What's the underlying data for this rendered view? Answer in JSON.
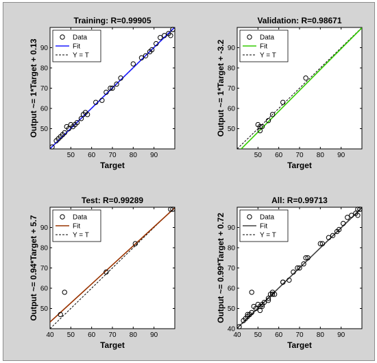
{
  "figure": {
    "background": "#d4d4d4",
    "plot_background": "#ffffff",
    "data_color": "#000000",
    "y_equals_t_color": "#000000"
  },
  "chart_data": [
    {
      "type": "scatter",
      "title": "Training: R=0.99905",
      "xlabel": "Target",
      "ylabel": "Output ~= 1*Target + 0.13",
      "xlim": [
        40,
        100
      ],
      "ylim": [
        40,
        100
      ],
      "xticks": [
        50,
        60,
        70,
        80,
        90
      ],
      "yticks": [
        50,
        60,
        70,
        80,
        90
      ],
      "grid": false,
      "legend": [
        "Data",
        "Fit",
        "Y = T"
      ],
      "legend_position": "top-left",
      "fit_color": "#1a1aff",
      "fit": {
        "slope": 1.0,
        "intercept": 0.13
      },
      "points": [
        [
          41,
          41
        ],
        [
          43,
          44
        ],
        [
          44,
          45
        ],
        [
          45,
          46
        ],
        [
          46,
          47
        ],
        [
          47,
          48
        ],
        [
          48,
          51
        ],
        [
          49,
          50
        ],
        [
          50,
          52
        ],
        [
          51,
          51
        ],
        [
          52,
          52
        ],
        [
          53,
          53
        ],
        [
          55,
          55
        ],
        [
          56,
          57
        ],
        [
          57,
          58
        ],
        [
          58,
          57
        ],
        [
          62,
          63
        ],
        [
          65,
          64
        ],
        [
          67,
          68
        ],
        [
          69,
          70
        ],
        [
          70,
          70
        ],
        [
          72,
          72
        ],
        [
          74,
          75
        ],
        [
          80,
          82
        ],
        [
          84,
          85
        ],
        [
          86,
          86
        ],
        [
          88,
          88
        ],
        [
          89,
          89
        ],
        [
          91,
          92
        ],
        [
          93,
          95
        ],
        [
          95,
          96
        ],
        [
          97,
          97
        ],
        [
          98,
          96
        ],
        [
          99,
          99
        ],
        [
          99,
          99
        ]
      ]
    },
    {
      "type": "scatter",
      "title": "Validation: R=0.98671",
      "xlabel": "Target",
      "ylabel": "Output ~= 1*Target + -3.2",
      "xlim": [
        40,
        100
      ],
      "ylim": [
        40,
        100
      ],
      "xticks": [
        50,
        60,
        70,
        80,
        90
      ],
      "yticks": [
        50,
        60,
        70,
        80,
        90
      ],
      "grid": false,
      "legend": [
        "Data",
        "Fit",
        "Y = T"
      ],
      "legend_position": "top-left",
      "fit_color": "#33cc00",
      "fit": {
        "slope": 1.03,
        "intercept": -3.2
      },
      "points": [
        [
          50,
          52
        ],
        [
          51,
          49
        ],
        [
          51,
          51
        ],
        [
          52,
          51
        ],
        [
          55,
          54
        ],
        [
          57,
          57
        ],
        [
          62,
          63
        ],
        [
          73,
          75
        ]
      ]
    },
    {
      "type": "scatter",
      "title": "Test: R=0.99289",
      "xlabel": "Target",
      "ylabel": "Output ~= 0.94*Target + 5.7",
      "xlim": [
        40,
        100
      ],
      "ylim": [
        40,
        100
      ],
      "xticks": [
        40,
        50,
        60,
        70,
        80,
        90
      ],
      "yticks": [
        50,
        60,
        70,
        80,
        90
      ],
      "grid": false,
      "legend": [
        "Data",
        "Fit",
        "Y = T"
      ],
      "legend_position": "top-left",
      "fit_color": "#993300",
      "fit": {
        "slope": 0.94,
        "intercept": 5.7
      },
      "points": [
        [
          45,
          47
        ],
        [
          47,
          58
        ],
        [
          67,
          68
        ],
        [
          81,
          82
        ],
        [
          98,
          99
        ],
        [
          99,
          99
        ]
      ]
    },
    {
      "type": "scatter",
      "title": "All: R=0.99713",
      "xlabel": "Target",
      "ylabel": "Output ~= 0.99*Target + 0.72",
      "xlim": [
        40,
        100
      ],
      "ylim": [
        40,
        100
      ],
      "xticks": [
        40,
        50,
        60,
        70,
        80,
        90
      ],
      "yticks": [
        40,
        50,
        60,
        70,
        80,
        90
      ],
      "grid": false,
      "legend": [
        "Data",
        "Fit",
        "Y = T"
      ],
      "legend_position": "top-left",
      "fit_color": "#404040",
      "fit": {
        "slope": 0.99,
        "intercept": 0.72
      },
      "points": [
        [
          41,
          41
        ],
        [
          43,
          44
        ],
        [
          44,
          45
        ],
        [
          45,
          46
        ],
        [
          45,
          47
        ],
        [
          46,
          47
        ],
        [
          47,
          48
        ],
        [
          47,
          58
        ],
        [
          48,
          51
        ],
        [
          49,
          50
        ],
        [
          50,
          52
        ],
        [
          51,
          51
        ],
        [
          51,
          49
        ],
        [
          52,
          51
        ],
        [
          52,
          52
        ],
        [
          53,
          53
        ],
        [
          55,
          54
        ],
        [
          55,
          55
        ],
        [
          56,
          57
        ],
        [
          57,
          57
        ],
        [
          57,
          58
        ],
        [
          58,
          57
        ],
        [
          62,
          63
        ],
        [
          62,
          63
        ],
        [
          65,
          64
        ],
        [
          67,
          68
        ],
        [
          69,
          70
        ],
        [
          70,
          70
        ],
        [
          72,
          72
        ],
        [
          73,
          75
        ],
        [
          74,
          75
        ],
        [
          80,
          82
        ],
        [
          81,
          82
        ],
        [
          84,
          85
        ],
        [
          86,
          86
        ],
        [
          88,
          88
        ],
        [
          89,
          89
        ],
        [
          91,
          92
        ],
        [
          93,
          95
        ],
        [
          95,
          96
        ],
        [
          97,
          97
        ],
        [
          98,
          96
        ],
        [
          98,
          99
        ],
        [
          99,
          99
        ],
        [
          99,
          99
        ]
      ]
    }
  ]
}
